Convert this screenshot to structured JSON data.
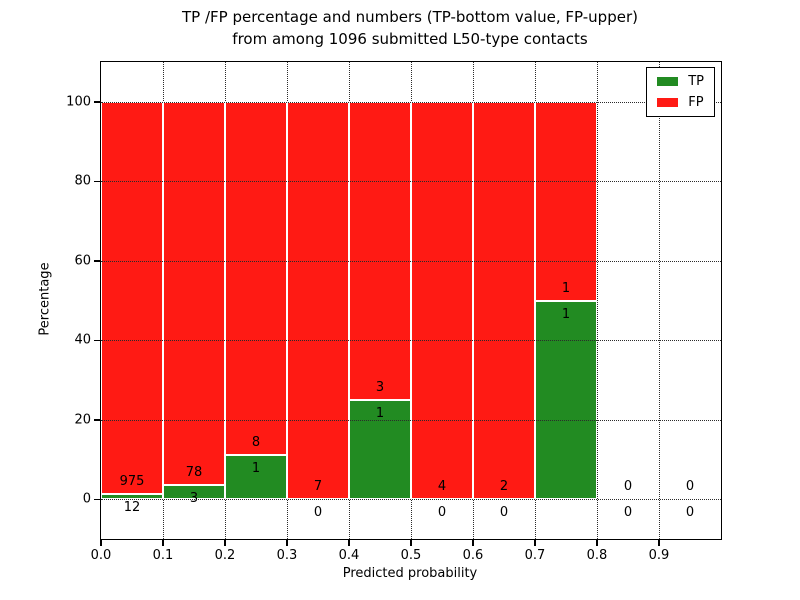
{
  "title": {
    "line1": "TP /FP percentage and numbers (TP-bottom value, FP-upper)",
    "line2": "from among 1096 submitted L50-type contacts"
  },
  "chart_data": {
    "type": "bar",
    "stacked": true,
    "title": "TP /FP percentage and numbers (TP-bottom value, FP-upper) from among 1096 submitted L50-type contacts",
    "xlabel": "Predicted probability",
    "ylabel": "Percentage",
    "xlim": [
      0,
      1
    ],
    "ylim": [
      -10,
      110
    ],
    "xtick_values": [
      0.0,
      0.1,
      0.2,
      0.3,
      0.4,
      0.5,
      0.6,
      0.7,
      0.8,
      0.9
    ],
    "xtick_labels": [
      "0.0",
      "0.1",
      "0.2",
      "0.3",
      "0.4",
      "0.5",
      "0.6",
      "0.7",
      "0.8",
      "0.9"
    ],
    "ytick_values": [
      0,
      20,
      40,
      60,
      80,
      100
    ],
    "ytick_labels": [
      "0",
      "20",
      "40",
      "60",
      "80",
      "100"
    ],
    "grid": {
      "on": true,
      "style": "dotted"
    },
    "legend": {
      "position": "upper-right",
      "entries": [
        {
          "label": "TP",
          "color": "#228b22"
        },
        {
          "label": "FP",
          "color": "#ff1a14"
        }
      ]
    },
    "series_note": "Each non-empty bin is stacked to 100%: TP (green) on bottom, FP (red) on top. Numeric labels show raw counts: FP count above the TP/FP boundary, TP count below it.",
    "bins": [
      {
        "x0": 0.0,
        "x1": 0.1,
        "tp": 12,
        "fp": 975
      },
      {
        "x0": 0.1,
        "x1": 0.2,
        "tp": 3,
        "fp": 78
      },
      {
        "x0": 0.2,
        "x1": 0.3,
        "tp": 1,
        "fp": 8
      },
      {
        "x0": 0.3,
        "x1": 0.4,
        "tp": 0,
        "fp": 7
      },
      {
        "x0": 0.4,
        "x1": 0.5,
        "tp": 1,
        "fp": 3
      },
      {
        "x0": 0.5,
        "x1": 0.6,
        "tp": 0,
        "fp": 4
      },
      {
        "x0": 0.6,
        "x1": 0.7,
        "tp": 0,
        "fp": 2
      },
      {
        "x0": 0.7,
        "x1": 0.8,
        "tp": 1,
        "fp": 1
      },
      {
        "x0": 0.8,
        "x1": 0.9,
        "tp": 0,
        "fp": 0
      },
      {
        "x0": 0.9,
        "x1": 1.0,
        "tp": 0,
        "fp": 0
      }
    ],
    "colors": {
      "tp": "#228b22",
      "fp": "#ff1a14",
      "grid": "#2b2b2b",
      "frame": "#000000",
      "bar_edge": "#ffffff",
      "background": "#ffffff"
    }
  }
}
